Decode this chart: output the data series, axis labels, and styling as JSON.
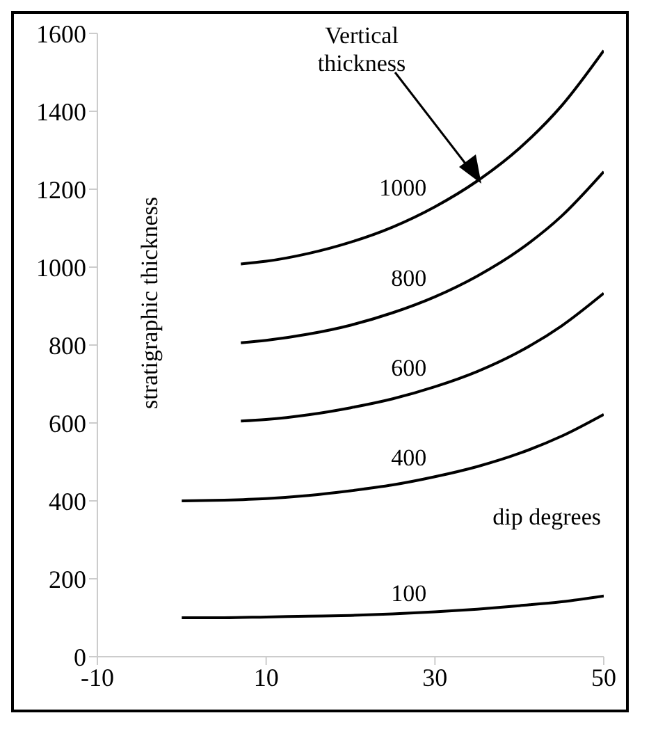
{
  "chart_data": {
    "type": "line",
    "xlabel": "dip degrees",
    "xlim": [
      -10,
      50
    ],
    "xticks": [
      -10,
      10,
      30,
      50
    ],
    "ylim": [
      0,
      1600
    ],
    "yticks": [
      0,
      200,
      400,
      600,
      800,
      1000,
      1200,
      1400,
      1600
    ],
    "grid": false,
    "legend": false,
    "marker": "none",
    "line_style": "solid",
    "annotations": [
      "stratigraphic thickness",
      "Vertical thickness"
    ],
    "series": [
      {
        "name": "100",
        "color": "#000000",
        "x": [
          0,
          5,
          10,
          15,
          20,
          25,
          30,
          35,
          40,
          45,
          50
        ],
        "values": [
          100,
          100,
          102,
          104,
          106,
          110,
          115,
          122,
          131,
          141,
          156
        ]
      },
      {
        "name": "400",
        "color": "#000000",
        "x": [
          0,
          5,
          10,
          15,
          20,
          25,
          30,
          35,
          40,
          45,
          50
        ],
        "values": [
          400,
          402,
          406,
          414,
          426,
          441,
          462,
          488,
          522,
          566,
          622
        ]
      },
      {
        "name": "600",
        "color": "#000000",
        "x": [
          7,
          10,
          15,
          20,
          25,
          30,
          35,
          40,
          45,
          50
        ],
        "values": [
          605,
          609,
          621,
          639,
          662,
          693,
          732,
          783,
          849,
          933
        ]
      },
      {
        "name": "800",
        "color": "#000000",
        "x": [
          7,
          10,
          15,
          20,
          25,
          30,
          35,
          40,
          45,
          50
        ],
        "values": [
          806,
          812,
          828,
          851,
          883,
          924,
          977,
          1044,
          1131,
          1245
        ]
      },
      {
        "name": "1000",
        "color": "#000000",
        "x": [
          7,
          10,
          15,
          20,
          25,
          30,
          35,
          40,
          45,
          50
        ],
        "values": [
          1008,
          1015,
          1035,
          1064,
          1103,
          1155,
          1221,
          1305,
          1414,
          1556
        ]
      }
    ]
  }
}
